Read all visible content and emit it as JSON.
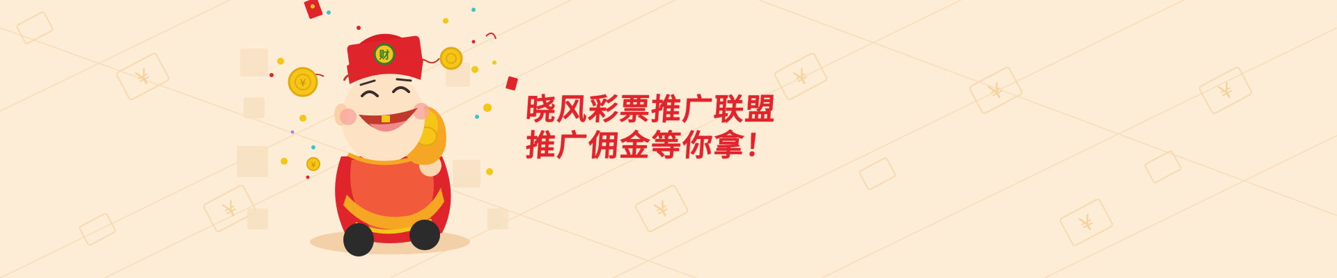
{
  "headline": {
    "line1": "晓风彩票推广联盟",
    "line2": "推广佣金等你拿！"
  },
  "mascot": {
    "hat_badge": "财"
  },
  "decoration": {
    "currency_symbol": "¥"
  },
  "colors": {
    "background": "#fdecd6",
    "accent_red": "#e0242b",
    "gold": "#f5c518"
  }
}
